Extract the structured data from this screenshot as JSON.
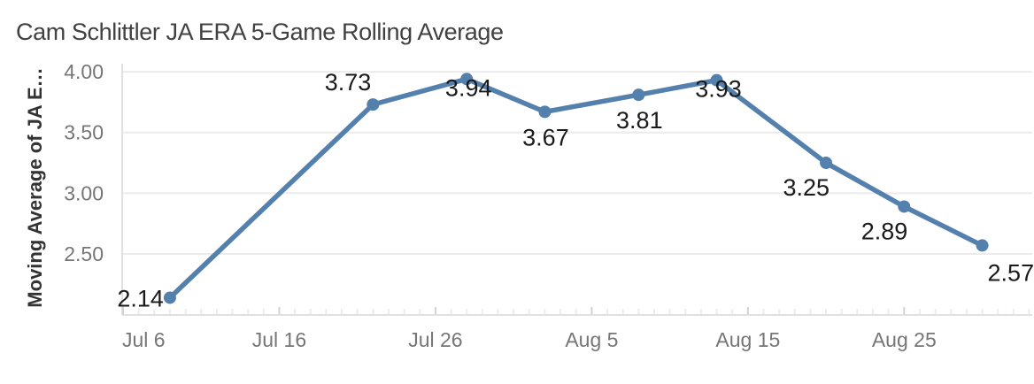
{
  "header": {
    "title": "Cam Schlittler JA ERA 5-Game Rolling Average"
  },
  "chart_data": {
    "type": "line",
    "title": "Cam Schlittler JA ERA 5-Game Rolling Average",
    "xlabel": "",
    "ylabel": "Moving Average of JA E…",
    "legend": "none",
    "grid": "horizontal",
    "x_domain_days_from_jul6": [
      0,
      58.2
    ],
    "y_domain": [
      2.005,
      4.066
    ],
    "x_ticks": [
      {
        "day": 0,
        "label": "Jul 6"
      },
      {
        "day": 10,
        "label": "Jul 16"
      },
      {
        "day": 20,
        "label": "Jul 26"
      },
      {
        "day": 30,
        "label": "Aug 5"
      },
      {
        "day": 40,
        "label": "Aug 15"
      },
      {
        "day": 50,
        "label": "Aug 25"
      }
    ],
    "minor_tick_every_days": 1,
    "y_ticks": [
      {
        "value": 4.0,
        "label": "4.00"
      },
      {
        "value": 3.5,
        "label": "3.50"
      },
      {
        "value": 3.0,
        "label": "3.00"
      },
      {
        "value": 2.5,
        "label": "2.50"
      }
    ],
    "points": [
      {
        "date": "Jul 9",
        "day": 3,
        "value": 2.14,
        "label": "2.14",
        "label_placement": "left"
      },
      {
        "date": "Jul 22",
        "day": 16,
        "value": 3.73,
        "label": "3.73",
        "label_placement": "above-left"
      },
      {
        "date": "Jul 28",
        "day": 22,
        "value": 3.94,
        "label": "3.94",
        "label_placement": "below-peak"
      },
      {
        "date": "Aug 2",
        "day": 27,
        "value": 3.67,
        "label": "3.67",
        "label_placement": "below"
      },
      {
        "date": "Aug 8",
        "day": 33,
        "value": 3.81,
        "label": "3.81",
        "label_placement": "below"
      },
      {
        "date": "Aug 13",
        "day": 38,
        "value": 3.93,
        "label": "3.93",
        "label_placement": "below-peak"
      },
      {
        "date": "Aug 20",
        "day": 45,
        "value": 3.25,
        "label": "3.25",
        "label_placement": "below-left"
      },
      {
        "date": "Aug 25",
        "day": 50,
        "value": 2.89,
        "label": "2.89",
        "label_placement": "below-left"
      },
      {
        "date": "Aug 30",
        "day": 55,
        "value": 2.57,
        "label": "2.57",
        "label_placement": "below-right"
      }
    ],
    "colors": {
      "line": "#5480ad",
      "marker": "#5480ad",
      "grid": "#ebebeb",
      "axis": "#e1e1e1",
      "tick_minor": "#ededed",
      "tick_major": "#d2d2d2",
      "tick_label": "#767676",
      "data_label": "#1a1a1a",
      "title": "#414141",
      "ylabel": "#333333"
    }
  }
}
